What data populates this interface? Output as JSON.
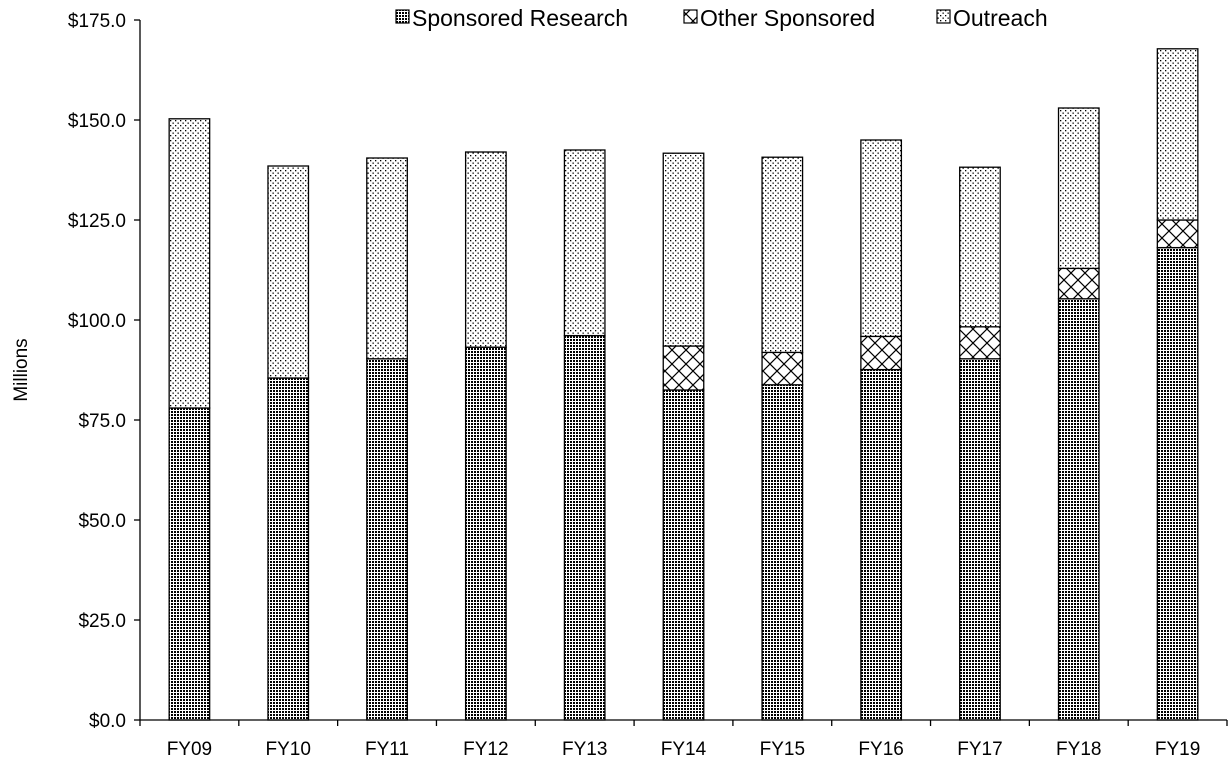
{
  "chart_data": {
    "type": "bar",
    "stacked": true,
    "categories": [
      "FY09",
      "FY10",
      "FY11",
      "FY12",
      "FY13",
      "FY14",
      "FY15",
      "FY16",
      "FY17",
      "FY18",
      "FY19"
    ],
    "series": [
      {
        "name": "Sponsored Research",
        "pattern": "dense-dots",
        "values": [
          78.0,
          85.5,
          90.3,
          93.2,
          96.1,
          82.5,
          83.8,
          87.6,
          90.3,
          105.3,
          118.1
        ]
      },
      {
        "name": "Other Sponsored",
        "pattern": "crosshatch",
        "values": [
          0,
          0,
          0,
          0,
          0,
          11.0,
          8.1,
          8.3,
          8.0,
          7.6,
          6.9
        ]
      },
      {
        "name": "Outreach",
        "pattern": "light-dots",
        "values": [
          72.3,
          53.0,
          50.2,
          48.8,
          46.4,
          48.2,
          48.8,
          49.1,
          39.9,
          40.1,
          42.8
        ]
      }
    ],
    "ylabel": "Millions",
    "xlabel": "",
    "ylim": [
      0,
      175
    ],
    "yticks": [
      0,
      25,
      50,
      75,
      100,
      125,
      150,
      175
    ],
    "ytick_labels": [
      "$0.0",
      "$25.0",
      "$50.0",
      "$75.0",
      "$100.0",
      "$125.0",
      "$150.0",
      "$175.0"
    ],
    "legend_position": "top",
    "grid": false
  }
}
